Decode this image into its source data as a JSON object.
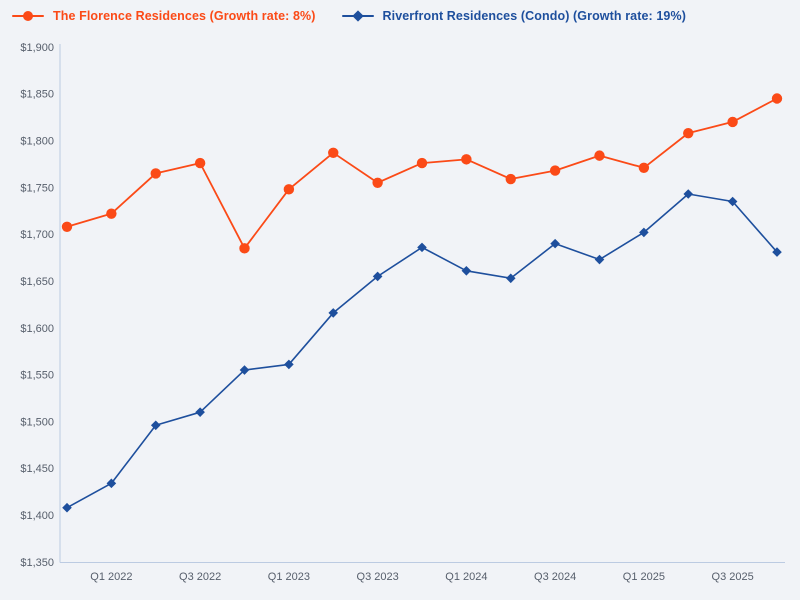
{
  "legend": {
    "items": [
      {
        "label": "The Florence Residences (Growth rate: 8%)",
        "marker": "circle-on-line"
      },
      {
        "label": "Riverfront Residences (Condo) (Growth rate: 19%)",
        "marker": "diamond-on-line"
      }
    ]
  },
  "chart_data": {
    "type": "line",
    "title": "",
    "xlabel": "",
    "ylabel": "",
    "grid": false,
    "legend_position": "top-left",
    "ylim": [
      1350,
      1900
    ],
    "categories": [
      "Q4 2021",
      "Q1 2022",
      "Q2 2022",
      "Q3 2022",
      "Q4 2022",
      "Q1 2023",
      "Q2 2023",
      "Q3 2023",
      "Q4 2023",
      "Q1 2024",
      "Q2 2024",
      "Q3 2024",
      "Q4 2024",
      "Q1 2025",
      "Q2 2025",
      "Q3 2025",
      "Q4 2025"
    ],
    "x_ticks": [
      {
        "index": 1,
        "label": "Q1 2022"
      },
      {
        "index": 3,
        "label": "Q3 2022"
      },
      {
        "index": 5,
        "label": "Q1 2023"
      },
      {
        "index": 7,
        "label": "Q3 2023"
      },
      {
        "index": 9,
        "label": "Q1 2024"
      },
      {
        "index": 11,
        "label": "Q3 2024"
      },
      {
        "index": 13,
        "label": "Q1 2025"
      },
      {
        "index": 15,
        "label": "Q3 2025"
      }
    ],
    "y_ticks": [
      {
        "value": 1350,
        "label": "$1,350"
      },
      {
        "value": 1400,
        "label": "$1,400"
      },
      {
        "value": 1450,
        "label": "$1,450"
      },
      {
        "value": 1500,
        "label": "$1,500"
      },
      {
        "value": 1550,
        "label": "$1,550"
      },
      {
        "value": 1600,
        "label": "$1,600"
      },
      {
        "value": 1650,
        "label": "$1,650"
      },
      {
        "value": 1700,
        "label": "$1,700"
      },
      {
        "value": 1750,
        "label": "$1,750"
      },
      {
        "value": 1800,
        "label": "$1,800"
      },
      {
        "value": 1850,
        "label": "$1,850"
      },
      {
        "value": 1900,
        "label": "$1,900"
      }
    ],
    "series": [
      {
        "name": "The Florence Residences",
        "growth_rate": "8%",
        "marker": "circle",
        "color": "#fb4a17",
        "values": [
          1708,
          1722,
          1765,
          1776,
          1685,
          1748,
          1787,
          1755,
          1776,
          1780,
          1759,
          1768,
          1784,
          1771,
          1808,
          1820,
          1845
        ]
      },
      {
        "name": "Riverfront Residences (Condo)",
        "growth_rate": "19%",
        "marker": "diamond",
        "color": "#1e4f9d",
        "values": [
          1408,
          1434,
          1496,
          1510,
          1555,
          1561,
          1616,
          1655,
          1686,
          1661,
          1653,
          1690,
          1673,
          1702,
          1743,
          1735,
          1681
        ]
      }
    ],
    "colors": {
      "background": "#f1f3f7",
      "axis_line": "#bccbe2",
      "tick_text": "#565e6b"
    }
  }
}
